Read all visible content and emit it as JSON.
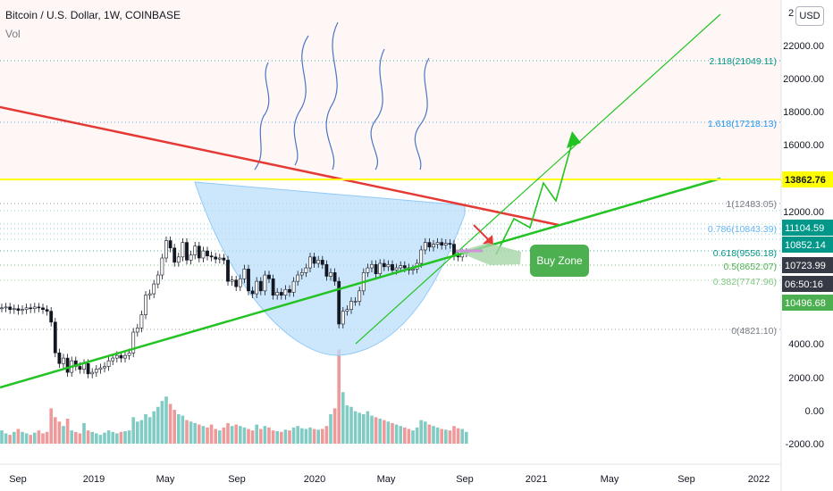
{
  "header": {
    "title": "Bitcoin / U.S. Dollar, 1W, COINBASE",
    "volume_label": "Vol",
    "currency_button": "USD"
  },
  "annotation": {
    "buy_zone": "Buy Zone"
  },
  "colors": {
    "resistance": "#e53935",
    "support": "#22c322",
    "horizontal": "#ffff00",
    "candle_up": "#000000",
    "candle_down": "#000000",
    "volume_up": "#80cbc4",
    "volume_down": "#ef9a9a",
    "cup": "#bbdefb",
    "fib_green": "#4caf50",
    "fib_teal": "#009688"
  },
  "chart_data": {
    "type": "line",
    "x_ticks": [
      "Sep",
      "2019",
      "May",
      "Sep",
      "2020",
      "May",
      "Sep",
      "2021",
      "May",
      "Sep",
      "2022"
    ],
    "y_ticks": [
      "22000.00",
      "20000.00",
      "18000.00",
      "16000.00",
      "12000.00",
      "4000.00",
      "2000.00",
      "0.00",
      "-2000.00"
    ],
    "y_top_cut": "2",
    "price_labels": [
      {
        "text": "13862.76",
        "color": "#ffff00",
        "fg": "#131722"
      },
      {
        "text": "11104.59",
        "color": "#009688",
        "fg": "#ffffff"
      },
      {
        "text": "10852.14",
        "color": "#009688",
        "fg": "#ffffff"
      },
      {
        "text": "10723.99",
        "color": "#363a45",
        "fg": "#ffffff"
      },
      {
        "text": "06:50:16",
        "color": "#363a45",
        "fg": "#ffffff"
      },
      {
        "text": "10496.68",
        "color": "#4caf50",
        "fg": "#ffffff"
      }
    ],
    "fib_levels": [
      {
        "label": "2.118(21049.11)",
        "color": "#009688"
      },
      {
        "label": "1.618(17218.13)",
        "color": "#2196f3"
      },
      {
        "label": "1(12483.05)",
        "color": "#787b86"
      },
      {
        "label": "0.786(10843.39)",
        "color": "#64b5f6"
      },
      {
        "label": "0.618(9556.18)",
        "color": "#009688"
      },
      {
        "label": "0.5(8652.07)",
        "color": "#4caf50"
      },
      {
        "label": "0.382(7747.96)",
        "color": "#81c784"
      },
      {
        "label": "0(4821.10)",
        "color": "#787b86"
      }
    ],
    "close_weekly": [
      6400,
      6450,
      6300,
      6350,
      6250,
      6300,
      6400,
      6350,
      6450,
      6400,
      6300,
      6200,
      5600,
      4200,
      3800,
      4000,
      3500,
      3900,
      3700,
      3600,
      3800,
      3450,
      3500,
      3600,
      3650,
      3700,
      3900,
      4000,
      4100,
      4000,
      4100,
      4200,
      5100,
      5300,
      6000,
      7200,
      7300,
      8000,
      8700,
      10200,
      12000,
      11200,
      9800,
      10300,
      11800,
      10000,
      10500,
      11400,
      10200,
      10900,
      10400,
      10300,
      10100,
      10200,
      10000,
      8200,
      8300,
      7800,
      8400,
      9200,
      7500,
      7300,
      8200,
      7500,
      8700,
      8400,
      7200,
      7400,
      7200,
      7600,
      7400,
      8200,
      8700,
      8900,
      9300,
      10300,
      9700,
      10000,
      9600,
      8600,
      8900,
      8200,
      5500,
      6200,
      6300,
      6800,
      6800,
      7500,
      8900,
      9300,
      9600,
      8800,
      9700,
      9400,
      9600,
      9100,
      9300,
      9500,
      9300,
      9100,
      9200,
      9700,
      11000,
      11800,
      11300,
      11600,
      11800,
      11500,
      11700,
      11600,
      10400,
      10300,
      10700,
      10750
    ],
    "volume_weekly": [
      900,
      700,
      600,
      800,
      1000,
      800,
      700,
      600,
      750,
      900,
      700,
      800,
      2400,
      1800,
      1500,
      1200,
      1700,
      900,
      800,
      700,
      1400,
      900,
      800,
      700,
      600,
      750,
      900,
      800,
      700,
      800,
      850,
      900,
      1800,
      1500,
      1600,
      2000,
      1800,
      2200,
      2500,
      2900,
      3200,
      2700,
      2300,
      2000,
      1900,
      1600,
      1500,
      1400,
      1300,
      1200,
      1100,
      1300,
      1000,
      900,
      1100,
      1400,
      1200,
      1300,
      1200,
      1100,
      1000,
      900,
      1300,
      1000,
      1200,
      1100,
      900,
      850,
      800,
      950,
      900,
      1100,
      1200,
      1050,
      1000,
      1100,
      1000,
      950,
      1000,
      1200,
      2000,
      2400,
      6400,
      3500,
      2600,
      2500,
      2200,
      2100,
      2000,
      2200,
      1900,
      1800,
      1700,
      1600,
      1500,
      1400,
      1300,
      1200,
      1100,
      1000,
      900,
      1100,
      1600,
      1500,
      1300,
      1200,
      1100,
      1000,
      950,
      900,
      1200,
      1050,
      1000,
      800
    ]
  }
}
